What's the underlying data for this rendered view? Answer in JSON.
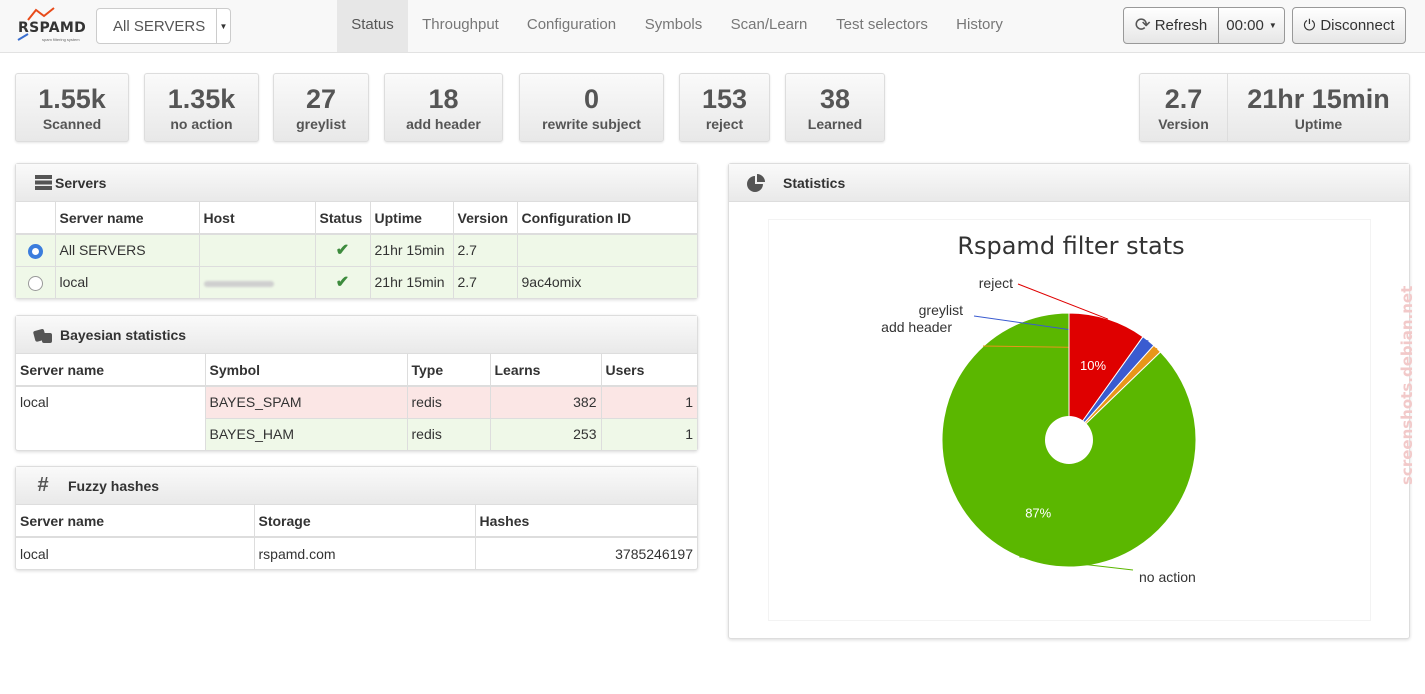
{
  "brand": {
    "name": "RSPAMD",
    "tagline": "spam filtering system"
  },
  "server_select": {
    "value": "All SERVERS"
  },
  "nav": {
    "tabs": [
      "Status",
      "Throughput",
      "Configuration",
      "Symbols",
      "Scan/Learn",
      "Test selectors",
      "History"
    ],
    "active": "Status"
  },
  "toolbar": {
    "refresh_label": "Refresh",
    "interval": "00:00",
    "disconnect_label": "Disconnect"
  },
  "stats": [
    {
      "value": "1.55k",
      "label": "Scanned"
    },
    {
      "value": "1.35k",
      "label": "no action"
    },
    {
      "value": "27",
      "label": "greylist"
    },
    {
      "value": "18",
      "label": "add header"
    },
    {
      "value": "0",
      "label": "rewrite subject"
    },
    {
      "value": "153",
      "label": "reject"
    },
    {
      "value": "38",
      "label": "Learned"
    }
  ],
  "info": {
    "version_value": "2.7",
    "version_label": "Version",
    "uptime_value": "21hr 15min",
    "uptime_label": "Uptime"
  },
  "servers_panel": {
    "title": "Servers",
    "headers": [
      "",
      "Server name",
      "Host",
      "Status",
      "Uptime",
      "Version",
      "Configuration ID"
    ],
    "rows": [
      {
        "selected": true,
        "name": "All SERVERS",
        "host": "",
        "status": "✔",
        "uptime": "21hr 15min",
        "version": "2.7",
        "config_id": ""
      },
      {
        "selected": false,
        "name": "local",
        "host": "",
        "status": "✔",
        "uptime": "21hr 15min",
        "version": "2.7",
        "config_id": "9ac4omix"
      }
    ]
  },
  "bayes_panel": {
    "title": "Bayesian statistics",
    "headers": [
      "Server name",
      "Symbol",
      "Type",
      "Learns",
      "Users"
    ],
    "server": "local",
    "rows": [
      {
        "symbol": "BAYES_SPAM",
        "type": "redis",
        "learns": "382",
        "users": "1"
      },
      {
        "symbol": "BAYES_HAM",
        "type": "redis",
        "learns": "253",
        "users": "1"
      }
    ]
  },
  "fuzzy_panel": {
    "title": "Fuzzy hashes",
    "headers": [
      "Server name",
      "Storage",
      "Hashes"
    ],
    "rows": [
      {
        "server": "local",
        "storage": "rspamd.com",
        "hashes": "3785246197"
      }
    ]
  },
  "stats_panel": {
    "title": "Statistics"
  },
  "chart_data": {
    "type": "pie",
    "title": "Rspamd filter stats",
    "slices": [
      {
        "label": "no action",
        "value": 1350,
        "pct_label": "87%",
        "color": "#5bb700"
      },
      {
        "label": "add header",
        "value": 18,
        "pct_label": "",
        "color": "#e8961a"
      },
      {
        "label": "greylist",
        "value": 27,
        "pct_label": "",
        "color": "#3a5bd0"
      },
      {
        "label": "reject",
        "value": 153,
        "pct_label": "10%",
        "color": "#df0000"
      }
    ]
  },
  "watermark": "screenshots.debian.net"
}
